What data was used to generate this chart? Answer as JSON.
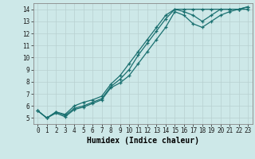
{
  "title": "",
  "xlabel": "Humidex (Indice chaleur)",
  "ylabel": "",
  "bg_color": "#cde8e8",
  "grid_color": "#c0d8d8",
  "line_color": "#1a7070",
  "xlim": [
    -0.5,
    23.5
  ],
  "ylim": [
    4.5,
    14.5
  ],
  "xticks": [
    0,
    1,
    2,
    3,
    4,
    5,
    6,
    7,
    8,
    9,
    10,
    11,
    12,
    13,
    14,
    15,
    16,
    17,
    18,
    19,
    20,
    21,
    22,
    23
  ],
  "yticks": [
    5,
    6,
    7,
    8,
    9,
    10,
    11,
    12,
    13,
    14
  ],
  "series": [
    {
      "x": [
        0,
        1,
        2,
        3,
        4,
        5,
        6,
        7,
        8,
        9,
        10,
        11,
        12,
        13,
        14,
        15,
        16,
        17,
        18,
        19,
        20,
        21,
        22,
        23
      ],
      "y": [
        5.6,
        5.0,
        5.5,
        5.3,
        6.0,
        6.3,
        6.5,
        6.8,
        7.8,
        8.5,
        9.5,
        10.5,
        11.5,
        12.5,
        13.5,
        14.0,
        14.0,
        14.0,
        14.0,
        14.0,
        14.0,
        14.0,
        14.0,
        14.0
      ]
    },
    {
      "x": [
        0,
        1,
        2,
        3,
        4,
        5,
        6,
        7,
        8,
        9,
        10,
        11,
        12,
        13,
        14,
        15,
        16,
        17,
        18,
        19,
        20,
        21,
        22,
        23
      ],
      "y": [
        5.6,
        5.0,
        5.5,
        5.2,
        5.8,
        6.0,
        6.3,
        6.6,
        7.6,
        8.2,
        9.0,
        10.2,
        11.2,
        12.2,
        13.2,
        14.0,
        13.8,
        13.5,
        13.0,
        13.5,
        14.0,
        14.0,
        14.0,
        14.2
      ]
    },
    {
      "x": [
        0,
        1,
        2,
        3,
        4,
        5,
        6,
        7,
        8,
        9,
        10,
        11,
        12,
        13,
        14,
        15,
        16,
        17,
        18,
        19,
        20,
        21,
        22,
        23
      ],
      "y": [
        5.6,
        5.0,
        5.4,
        5.1,
        5.7,
        5.9,
        6.2,
        6.5,
        7.5,
        7.9,
        8.5,
        9.5,
        10.5,
        11.5,
        12.5,
        13.8,
        13.5,
        12.8,
        12.5,
        13.0,
        13.5,
        13.8,
        14.0,
        14.2
      ]
    }
  ]
}
